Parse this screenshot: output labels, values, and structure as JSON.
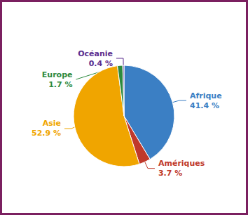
{
  "chart_data": {
    "type": "pie",
    "categories": [
      "Afrique",
      "Amériques",
      "Asie",
      "Europe",
      "Océanie"
    ],
    "values": [
      41.4,
      3.7,
      52.9,
      1.7,
      0.4
    ],
    "value_labels": [
      "41.4 %",
      "3.7 %",
      "52.9 %",
      "1.7 %",
      "0.4 %"
    ],
    "colors": [
      "#3b7fc4",
      "#c0392b",
      "#f0a500",
      "#2d8a3e",
      "#5b2d8e"
    ],
    "data_labels": true,
    "legend": false
  }
}
